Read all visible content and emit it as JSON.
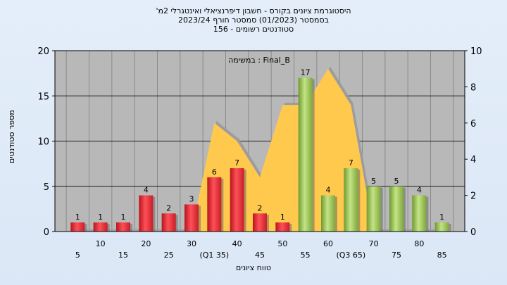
{
  "title_lines": [
    "'היסטוגרמת ציונים בקורס - חשבון דיפרנציאלי ואינטגרלי 2מ",
    "בסמסטר  (01/2023)  סמסטר חורף  2023/24",
    "סטודנטים רשומים - 156"
  ],
  "chart_data": {
    "type": "bar",
    "annotation": "במשימה : Final_B",
    "xlabel": "טווח ציונים",
    "ylabel": "מספר סטודנטים",
    "ylim": [
      0,
      20
    ],
    "yticks": [
      0,
      5,
      10,
      15,
      20
    ],
    "y2lim": [
      0,
      10
    ],
    "y2ticks": [
      0,
      2,
      4,
      6,
      8,
      10
    ],
    "grid": true,
    "categories": [
      "5",
      "10",
      "15",
      "20",
      "25",
      "30",
      "(Q1 35)",
      "40",
      "45",
      "50",
      "55",
      "60",
      "(Q3 65)",
      "70",
      "75",
      "80",
      "85"
    ],
    "values": [
      1,
      1,
      1,
      4,
      2,
      3,
      6,
      7,
      2,
      1,
      17,
      4,
      7,
      5,
      5,
      4,
      1
    ],
    "bar_colors": [
      "red",
      "red",
      "red",
      "red",
      "red",
      "red",
      "red",
      "red",
      "red",
      "red",
      "green",
      "green",
      "green",
      "green",
      "green",
      "green",
      "green"
    ],
    "area_series": {
      "axis": "right",
      "values": [
        0,
        0,
        0,
        0,
        0,
        0,
        6,
        5,
        3,
        7,
        7,
        9,
        7,
        0,
        0,
        0,
        0
      ]
    },
    "colors": {
      "red_bar": "#e8303a",
      "green_bar": "#9bc555",
      "area_fill": "#ffc94d",
      "shadow_area": "#9a9a9a",
      "plot_bg": "#b8b8b8"
    }
  }
}
